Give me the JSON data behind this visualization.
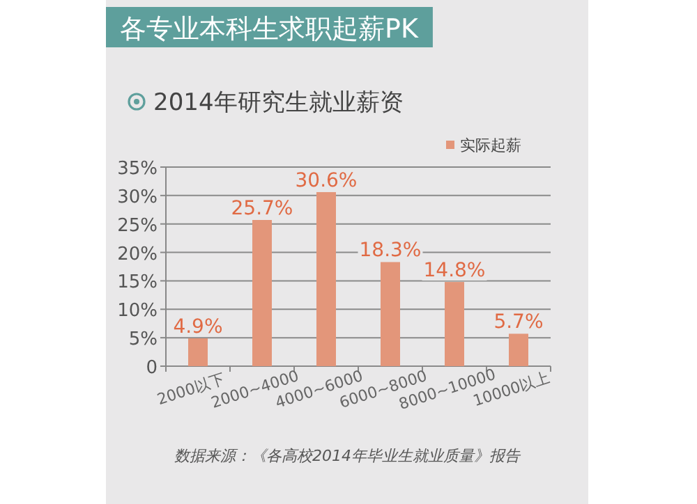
{
  "chart_data": {
    "type": "bar",
    "title": "各专业本科生求职起薪PK",
    "subtitle": "2014年研究生就业薪资",
    "categories": [
      "2000以下",
      "2000~4000",
      "4000~6000",
      "6000~8000",
      "8000~10000",
      "10000以上"
    ],
    "series": [
      {
        "name": "实际起薪",
        "color": "#e3967a",
        "values": [
          4.9,
          25.7,
          30.6,
          18.3,
          14.8,
          5.7
        ],
        "value_labels": [
          "4.9%",
          "25.7%",
          "30.6%",
          "18.3%",
          "14.8%",
          "5.7%"
        ]
      }
    ],
    "ylim": [
      0,
      35
    ],
    "yticks": [
      0,
      {
        "value": 5,
        "label": "5%"
      },
      {
        "value": 10,
        "label": "10%"
      },
      {
        "value": 15,
        "label": "15%"
      },
      {
        "value": 20,
        "label": "20%"
      },
      {
        "value": 25,
        "label": "25%"
      },
      {
        "value": 30,
        "label": "30%"
      },
      {
        "value": 35,
        "label": "35%"
      }
    ],
    "grid": "y",
    "legend": "top right",
    "annotations": [
      "数据来源：《各高校2014年毕业生就业质量》报告"
    ]
  }
}
